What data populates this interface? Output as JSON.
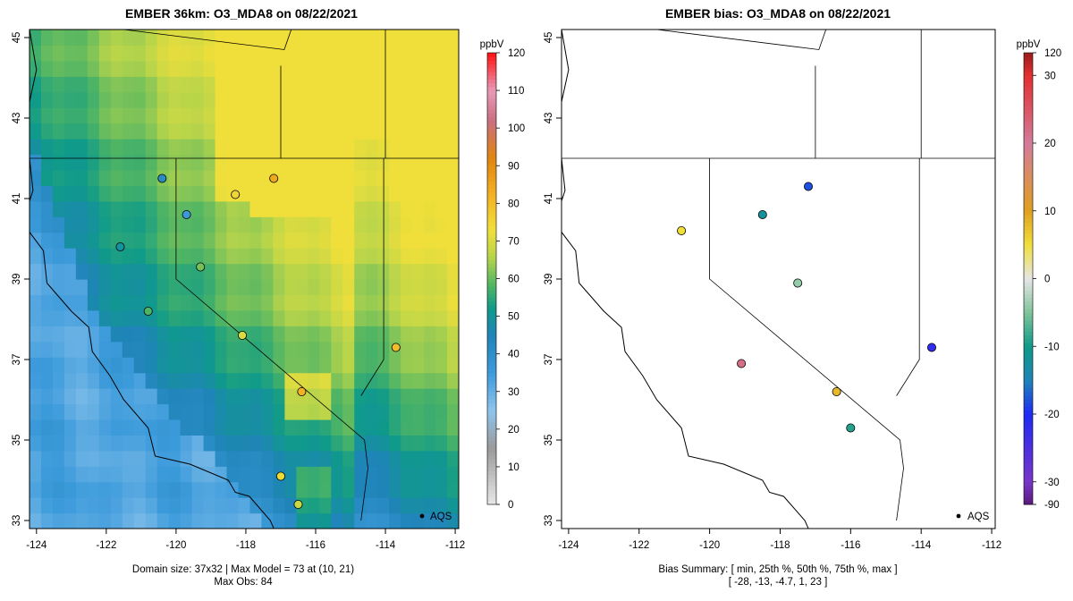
{
  "chart_data": [
    {
      "type": "heatmap",
      "title": "EMBER 36km: O3_MDA8 on 08/22/2021",
      "xlabel": "",
      "ylabel": "",
      "xlim": [
        -124.2,
        -111.9
      ],
      "ylim": [
        32.8,
        45.2
      ],
      "x_ticks": [
        "-124",
        "-122",
        "-120",
        "-118",
        "-116",
        "-114",
        "-112"
      ],
      "y_ticks": [
        "33",
        "35",
        "37",
        "39",
        "41",
        "43",
        "45"
      ],
      "colorbar": {
        "label": "ppbV",
        "ticks": [
          "0",
          "10",
          "20",
          "30",
          "40",
          "50",
          "60",
          "70",
          "80",
          "90",
          "100",
          "110",
          "120"
        ],
        "stops": [
          {
            "v": 0,
            "c": "#e8e8e8"
          },
          {
            "v": 15,
            "c": "#9a9a9a"
          },
          {
            "v": 25,
            "c": "#8ec4ec"
          },
          {
            "v": 35,
            "c": "#3d9bdb"
          },
          {
            "v": 45,
            "c": "#1f84b8"
          },
          {
            "v": 52,
            "c": "#0f9a8a"
          },
          {
            "v": 58,
            "c": "#4db465"
          },
          {
            "v": 66,
            "c": "#b9d54a"
          },
          {
            "v": 73,
            "c": "#f0df3a"
          },
          {
            "v": 82,
            "c": "#f3b224"
          },
          {
            "v": 92,
            "c": "#e0860f"
          },
          {
            "v": 102,
            "c": "#c96f80"
          },
          {
            "v": 110,
            "c": "#e89ab7"
          },
          {
            "v": 120,
            "c": "#ff1010"
          }
        ]
      },
      "stations": [
        {
          "lon": -119.7,
          "lat": 40.6,
          "v": 36
        },
        {
          "lon": -120.4,
          "lat": 41.5,
          "v": 42
        },
        {
          "lon": -121.6,
          "lat": 39.8,
          "v": 49
        },
        {
          "lon": -118.3,
          "lat": 41.1,
          "v": 75
        },
        {
          "lon": -117.2,
          "lat": 41.5,
          "v": 84
        },
        {
          "lon": -116.4,
          "lat": 36.2,
          "v": 82
        },
        {
          "lon": -113.7,
          "lat": 37.3,
          "v": 80
        },
        {
          "lon": -120.8,
          "lat": 38.2,
          "v": 58
        },
        {
          "lon": -119.3,
          "lat": 39.3,
          "v": 61
        },
        {
          "lon": -118.1,
          "lat": 37.6,
          "v": 70
        },
        {
          "lon": -117.0,
          "lat": 34.1,
          "v": 74
        },
        {
          "lon": -116.5,
          "lat": 33.4,
          "v": 68
        }
      ],
      "annotation": "AQS",
      "caption_line1": "Domain size: 37x32 | Max Model = 73 at (10, 21)",
      "caption_line2": "Max Obs: 84"
    },
    {
      "type": "scatter",
      "title": "EMBER bias: O3_MDA8 on 08/22/2021",
      "xlabel": "",
      "ylabel": "",
      "xlim": [
        -124.2,
        -111.9
      ],
      "ylim": [
        32.8,
        45.2
      ],
      "x_ticks": [
        "-124",
        "-122",
        "-120",
        "-118",
        "-116",
        "-114",
        "-112"
      ],
      "y_ticks": [
        "33",
        "35",
        "37",
        "39",
        "41",
        "43",
        "45"
      ],
      "colorbar": {
        "label": "ppbV",
        "ticks": [
          "-90",
          "-30",
          "-20",
          "-10",
          "0",
          "10",
          "20",
          "30",
          "120"
        ],
        "stops": [
          {
            "v": -90,
            "c": "#5a1a7a"
          },
          {
            "v": -30,
            "c": "#7a35c8"
          },
          {
            "v": -20,
            "c": "#1f2bf5"
          },
          {
            "v": -15,
            "c": "#1f84b8"
          },
          {
            "v": -10,
            "c": "#0f9a8a"
          },
          {
            "v": -5,
            "c": "#7fc49a"
          },
          {
            "v": 0,
            "c": "#e6e6e6"
          },
          {
            "v": 5,
            "c": "#f0df3a"
          },
          {
            "v": 10,
            "c": "#e0a020"
          },
          {
            "v": 20,
            "c": "#d37c9b"
          },
          {
            "v": 30,
            "c": "#e33030"
          },
          {
            "v": 120,
            "c": "#9a1e1e"
          }
        ]
      },
      "stations": [
        {
          "lon": -113.7,
          "lat": 37.3,
          "v": -22
        },
        {
          "lon": -117.2,
          "lat": 41.3,
          "v": -18
        },
        {
          "lon": -116.4,
          "lat": 36.2,
          "v": 8
        },
        {
          "lon": -120.8,
          "lat": 40.2,
          "v": 5
        },
        {
          "lon": -119.1,
          "lat": 36.9,
          "v": 22
        },
        {
          "lon": -118.5,
          "lat": 40.6,
          "v": -12
        },
        {
          "lon": -117.5,
          "lat": 38.9,
          "v": -4
        },
        {
          "lon": -116.0,
          "lat": 35.3,
          "v": -9
        }
      ],
      "annotation": "AQS",
      "summary_line1": "Bias Summary: [ min, 25th %, 50th %, 75th %, max ]",
      "summary_line2": "[ -28,  -13,  -4.7,  1,  23 ]",
      "bias_summary": {
        "min": -28,
        "p25": -13,
        "p50": -4.7,
        "p75": 1,
        "max": 23
      }
    }
  ]
}
